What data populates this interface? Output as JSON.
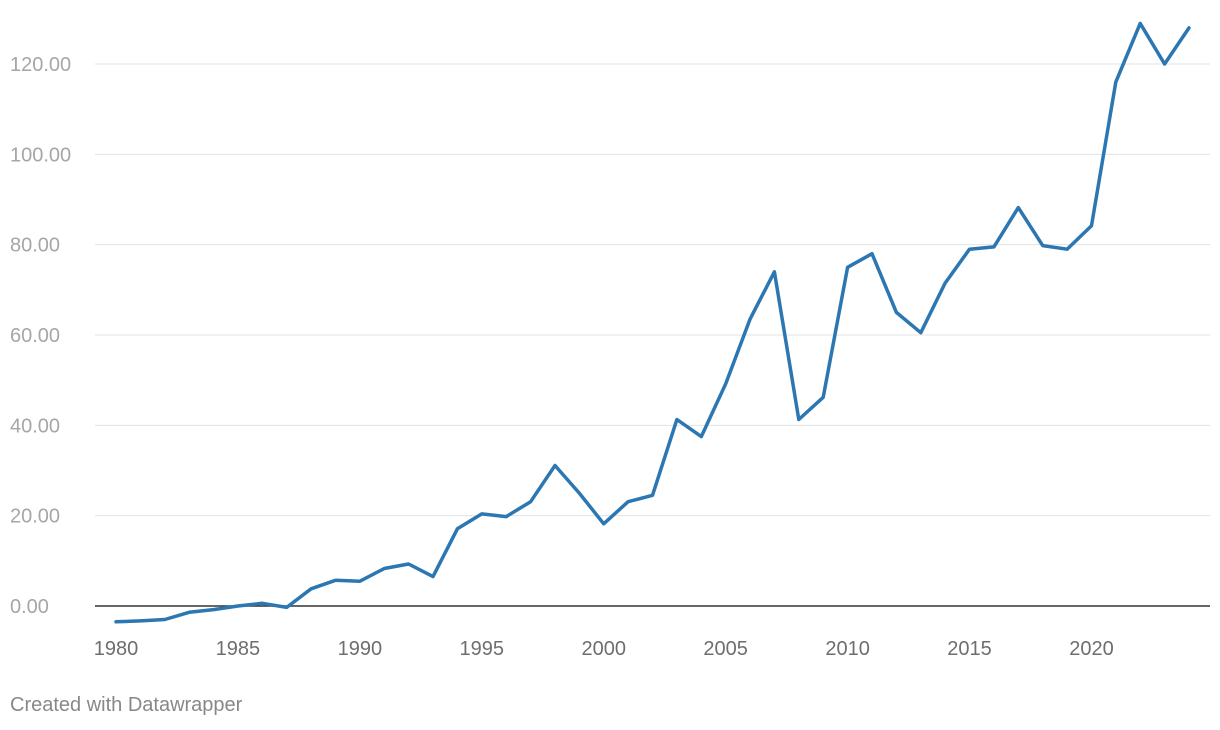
{
  "chart_data": {
    "type": "line",
    "x": [
      1980,
      1981,
      1982,
      1983,
      1984,
      1985,
      1986,
      1987,
      1988,
      1989,
      1990,
      1991,
      1992,
      1993,
      1994,
      1995,
      1996,
      1997,
      1998,
      1999,
      2000,
      2001,
      2002,
      2003,
      2004,
      2005,
      2006,
      2007,
      2008,
      2009,
      2010,
      2011,
      2012,
      2013,
      2014,
      2015,
      2016,
      2017,
      2018,
      2019,
      2020,
      2021,
      2022,
      2023,
      2024
    ],
    "series": [
      {
        "values": [
          -3.5,
          -3.3,
          -3.0,
          -1.4,
          -0.8,
          0.0,
          0.6,
          -0.3,
          3.8,
          5.7,
          5.5,
          8.3,
          9.3,
          6.5,
          17.1,
          20.4,
          19.8,
          23.1,
          31.1,
          25.0,
          18.2,
          23.1,
          24.5,
          41.3,
          37.5,
          49.2,
          63.5,
          74.0,
          41.3,
          46.2,
          75.0,
          78.0,
          65.0,
          60.5,
          71.5,
          79.0,
          79.5,
          88.2,
          79.8,
          79.0,
          84.2,
          116.0,
          129.0,
          120.0,
          128.0
        ],
        "color": "#2C77B1"
      }
    ],
    "title": "",
    "xlabel": "",
    "ylabel": "",
    "xlim": [
      1980,
      2024
    ],
    "ylim": [
      0,
      120
    ],
    "x_ticks": [
      "1980",
      "1985",
      "1990",
      "1995",
      "2000",
      "2005",
      "2010",
      "2015",
      "2020"
    ],
    "y_ticks": [
      "0.00",
      "20.00",
      "40.00",
      "60.00",
      "80.00",
      "100.00",
      "120.00"
    ],
    "grid": true,
    "legend": "none",
    "colors": {
      "line": "#2C77B1",
      "grid": "#E3E3E3",
      "zero_line": "#333333",
      "y_tick_text": "#A6A6A6",
      "x_tick_text": "#6E6E6E"
    }
  },
  "footer": {
    "credit": "Created with Datawrapper"
  }
}
